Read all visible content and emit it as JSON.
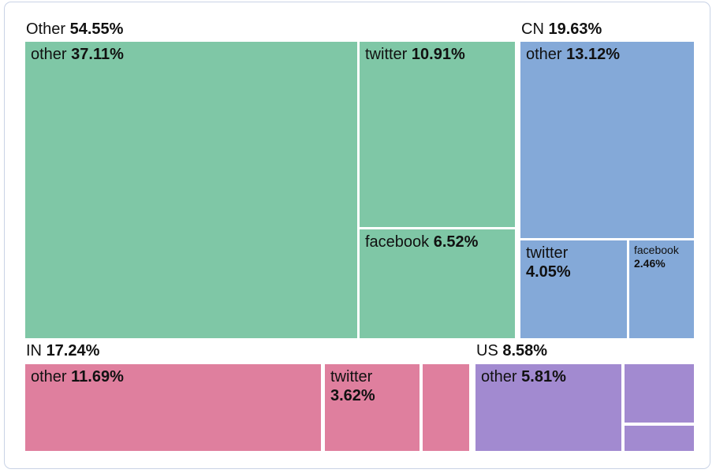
{
  "style": {
    "card_border": "#c9d3e6",
    "text_color": "#111111",
    "gap_color": "#ffffff"
  },
  "chart_data": {
    "type": "treemap",
    "title": "",
    "unit": "%",
    "legend": "none",
    "layout_hint": "grouped treemap, group labels above each group, white 3px gaps, card with rounded light-blue border",
    "groups": [
      {
        "name": "Other",
        "value": 54.55,
        "value_text": "54.55%",
        "color": "#7fc7a6",
        "children": [
          {
            "label": "other",
            "value": 37.11,
            "value_text": "37.11%"
          },
          {
            "label": "twitter",
            "value": 10.91,
            "value_text": "10.91%"
          },
          {
            "label": "facebook",
            "value": 6.52,
            "value_text": "6.52%"
          }
        ]
      },
      {
        "name": "CN",
        "value": 19.63,
        "value_text": "19.63%",
        "color": "#84a9d8",
        "children": [
          {
            "label": "other",
            "value": 13.12,
            "value_text": "13.12%"
          },
          {
            "label": "twitter",
            "value": 4.05,
            "value_text": "4.05%"
          },
          {
            "label": "facebook",
            "value": 2.46,
            "value_text": "2.46%"
          }
        ]
      },
      {
        "name": "IN",
        "value": 17.24,
        "value_text": "17.24%",
        "color": "#df7f9e",
        "children": [
          {
            "label": "other",
            "value": 11.69,
            "value_text": "11.69%"
          },
          {
            "label": "twitter",
            "value": 3.62,
            "value_text": "3.62%"
          },
          {
            "label": "",
            "value": 1.93,
            "value_text": "",
            "label_visible": false,
            "estimated": true
          }
        ]
      },
      {
        "name": "US",
        "value": 8.58,
        "value_text": "8.58%",
        "color": "#a28ad0",
        "children": [
          {
            "label": "other",
            "value": 5.81,
            "value_text": "5.81%"
          },
          {
            "label": "",
            "value": 1.93,
            "value_text": "",
            "label_visible": false,
            "estimated": true
          },
          {
            "label": "",
            "value": 0.84,
            "value_text": "",
            "label_visible": false,
            "estimated": true
          }
        ]
      }
    ]
  }
}
